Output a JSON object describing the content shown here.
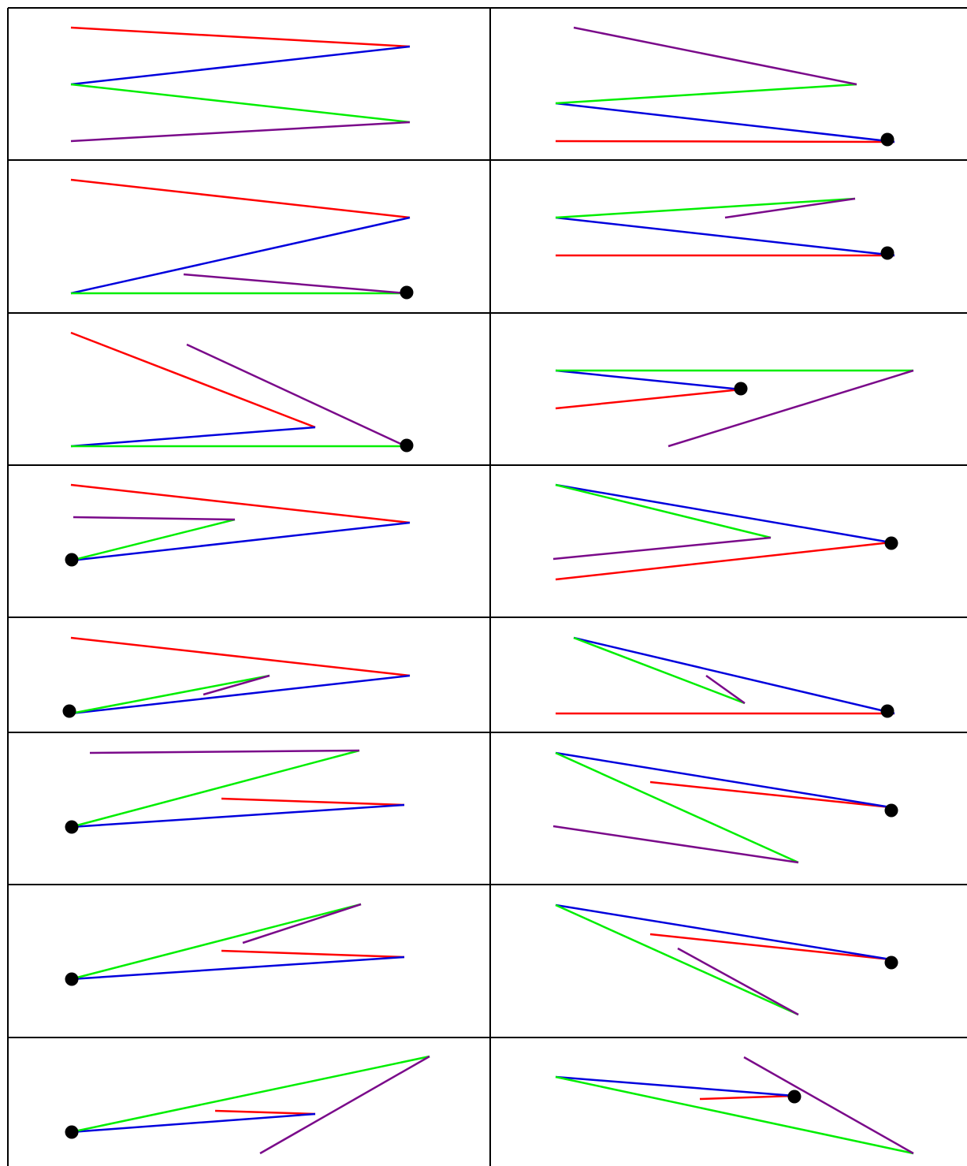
{
  "colors": {
    "red": "#ff0000",
    "blue": "#0000dd",
    "green": "#00ee00",
    "purple": "#7a0a8a",
    "dot": "#000000",
    "border": "#000000"
  },
  "panels": [
    {
      "id": "r1-left",
      "red": [
        [
          90,
          35
        ],
        [
          520,
          59
        ]
      ],
      "blue": [
        [
          520,
          59
        ],
        [
          90,
          107
        ]
      ],
      "green": [
        [
          90,
          107
        ],
        [
          520,
          155
        ]
      ],
      "purple": [
        [
          520,
          155
        ],
        [
          90,
          179
        ]
      ]
    },
    {
      "id": "r1-right",
      "red": [
        [
          705,
          179
        ],
        [
          1135,
          180
        ]
      ],
      "blue": [
        [
          1135,
          180
        ],
        [
          705,
          131
        ]
      ],
      "green": [
        [
          705,
          131
        ],
        [
          1087,
          107
        ]
      ],
      "purple": [
        [
          1087,
          107
        ],
        [
          728,
          35
        ]
      ],
      "dot": [
        1126,
        177
      ]
    },
    {
      "id": "r2-left",
      "red": [
        [
          90,
          228
        ],
        [
          520,
          276
        ]
      ],
      "blue": [
        [
          520,
          276
        ],
        [
          90,
          372
        ]
      ],
      "green": [
        [
          90,
          372
        ],
        [
          515,
          372
        ]
      ],
      "purple": [
        [
          515,
          372
        ],
        [
          233,
          348
        ]
      ],
      "dot": [
        516,
        371
      ]
    },
    {
      "id": "r2-right",
      "red": [
        [
          705,
          324
        ],
        [
          1135,
          324
        ]
      ],
      "blue": [
        [
          1135,
          324
        ],
        [
          705,
          276
        ]
      ],
      "green": [
        [
          705,
          276
        ],
        [
          1085,
          252
        ]
      ],
      "purple": [
        [
          1085,
          252
        ],
        [
          920,
          276
        ]
      ],
      "dot": [
        1126,
        321
      ]
    },
    {
      "id": "r3-left",
      "red": [
        [
          90,
          422
        ],
        [
          400,
          542
        ]
      ],
      "blue": [
        [
          400,
          542
        ],
        [
          90,
          566
        ]
      ],
      "green": [
        [
          90,
          566
        ],
        [
          515,
          566
        ]
      ],
      "purple": [
        [
          515,
          566
        ],
        [
          237,
          437
        ]
      ],
      "dot": [
        516,
        565
      ]
    },
    {
      "id": "r3-right",
      "red": [
        [
          705,
          518
        ],
        [
          940,
          494
        ]
      ],
      "blue": [
        [
          940,
          494
        ],
        [
          705,
          470
        ]
      ],
      "green": [
        [
          705,
          470
        ],
        [
          1159,
          470
        ]
      ],
      "purple": [
        [
          1159,
          470
        ],
        [
          848,
          566
        ]
      ],
      "dot": [
        940,
        493
      ]
    },
    {
      "id": "r4-left",
      "red": [
        [
          90,
          615
        ],
        [
          520,
          663
        ]
      ],
      "blue": [
        [
          520,
          663
        ],
        [
          90,
          711
        ]
      ],
      "green": [
        [
          90,
          711
        ],
        [
          298,
          659
        ]
      ],
      "purple": [
        [
          298,
          659
        ],
        [
          93,
          656
        ]
      ],
      "dot": [
        91,
        710
      ]
    },
    {
      "id": "r4-right",
      "red": [
        [
          705,
          735
        ],
        [
          1130,
          688
        ]
      ],
      "blue": [
        [
          1130,
          688
        ],
        [
          705,
          615
        ]
      ],
      "green": [
        [
          705,
          615
        ],
        [
          978,
          682
        ]
      ],
      "purple": [
        [
          978,
          682
        ],
        [
          702,
          709
        ]
      ],
      "dot": [
        1131,
        689
      ]
    },
    {
      "id": "r5-left",
      "red": [
        [
          90,
          809
        ],
        [
          520,
          857
        ]
      ],
      "blue": [
        [
          520,
          857
        ],
        [
          90,
          905
        ]
      ],
      "green": [
        [
          90,
          905
        ],
        [
          342,
          857
        ]
      ],
      "purple": [
        [
          342,
          857
        ],
        [
          258,
          881
        ]
      ],
      "dot": [
        88,
        902
      ]
    },
    {
      "id": "r5-right",
      "red": [
        [
          705,
          905
        ],
        [
          1135,
          905
        ]
      ],
      "blue": [
        [
          1135,
          905
        ],
        [
          728,
          809
        ]
      ],
      "green": [
        [
          728,
          809
        ],
        [
          945,
          892
        ]
      ],
      "purple": [
        [
          945,
          892
        ],
        [
          896,
          857
        ]
      ],
      "dot": [
        1126,
        902
      ]
    },
    {
      "id": "r6-left",
      "red": [
        [
          281,
          1013
        ],
        [
          513,
          1021
        ]
      ],
      "blue": [
        [
          513,
          1021
        ],
        [
          90,
          1049
        ]
      ],
      "green": [
        [
          90,
          1049
        ],
        [
          456,
          952
        ]
      ],
      "purple": [
        [
          456,
          952
        ],
        [
          114,
          955
        ]
      ],
      "dot": [
        91,
        1049
      ]
    },
    {
      "id": "r6-right",
      "red": [
        [
          825,
          992
        ],
        [
          1130,
          1024
        ]
      ],
      "blue": [
        [
          1130,
          1024
        ],
        [
          705,
          955
        ]
      ],
      "green": [
        [
          705,
          955
        ],
        [
          1013,
          1094
        ]
      ],
      "purple": [
        [
          1013,
          1094
        ],
        [
          702,
          1048
        ]
      ],
      "dot": [
        1131,
        1028
      ]
    },
    {
      "id": "r7-left",
      "red": [
        [
          281,
          1206
        ],
        [
          513,
          1214
        ]
      ],
      "blue": [
        [
          513,
          1214
        ],
        [
          90,
          1242
        ]
      ],
      "green": [
        [
          90,
          1242
        ],
        [
          458,
          1147
        ]
      ],
      "purple": [
        [
          458,
          1147
        ],
        [
          308,
          1196
        ]
      ],
      "dot": [
        91,
        1242
      ]
    },
    {
      "id": "r7-right",
      "red": [
        [
          825,
          1185
        ],
        [
          1130,
          1217
        ]
      ],
      "blue": [
        [
          1130,
          1217
        ],
        [
          705,
          1148
        ]
      ],
      "green": [
        [
          705,
          1148
        ],
        [
          1013,
          1287
        ]
      ],
      "purple": [
        [
          1013,
          1287
        ],
        [
          860,
          1203
        ]
      ],
      "dot": [
        1131,
        1221
      ]
    },
    {
      "id": "r8-left",
      "red": [
        [
          273,
          1409
        ],
        [
          400,
          1413
        ]
      ],
      "blue": [
        [
          400,
          1413
        ],
        [
          90,
          1436
        ]
      ],
      "green": [
        [
          90,
          1436
        ],
        [
          545,
          1340
        ]
      ],
      "purple": [
        [
          545,
          1340
        ],
        [
          330,
          1463
        ]
      ],
      "dot": [
        91,
        1436
      ]
    },
    {
      "id": "r8-right",
      "red": [
        [
          888,
          1394
        ],
        [
          1008,
          1390
        ]
      ],
      "blue": [
        [
          1008,
          1390
        ],
        [
          705,
          1366
        ]
      ],
      "green": [
        [
          705,
          1366
        ],
        [
          1159,
          1463
        ]
      ],
      "purple": [
        [
          1159,
          1463
        ],
        [
          944,
          1341
        ]
      ],
      "dot": [
        1008,
        1391
      ]
    }
  ]
}
